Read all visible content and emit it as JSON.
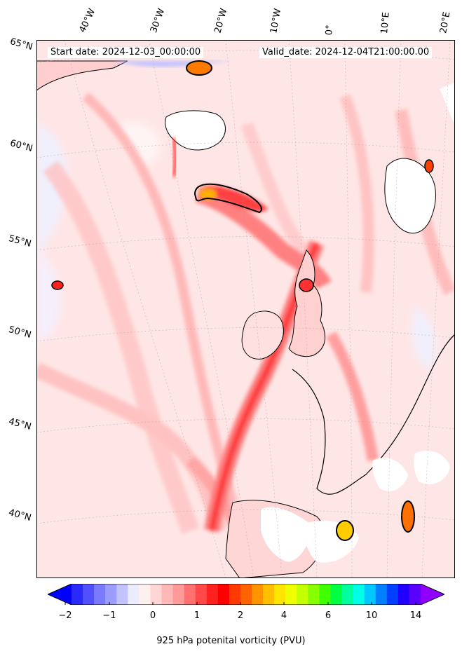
{
  "header": {
    "start_date": "Start date: 2024-12-03_00:00:00",
    "valid_date": "Valid_date: 2024-12-04T21:00:00.00"
  },
  "longitude_labels": [
    "40°W",
    "30°W",
    "20°W",
    "10°W",
    "0°",
    "10°E",
    "20°E"
  ],
  "latitude_labels": [
    "65°N",
    "60°N",
    "55°N",
    "50°N",
    "45°N",
    "40°N"
  ],
  "colorbar": {
    "title": "925 hPa potenital vorticity (PVU)",
    "tick_labels": [
      "−2",
      "−1",
      "0",
      "1",
      "2",
      "4",
      "6",
      "10",
      "14"
    ],
    "colors": [
      "#0000ff",
      "#2a2aff",
      "#5050ff",
      "#7a7aff",
      "#9c9cff",
      "#c2c2ff",
      "#ebebff",
      "#fff0f0",
      "#ffd6d6",
      "#ffb8b8",
      "#ff9a9a",
      "#ff7070",
      "#ff4848",
      "#ff2020",
      "#ff0000",
      "#ff3a00",
      "#ff6400",
      "#ff9400",
      "#ffbe00",
      "#ffe600",
      "#eeff00",
      "#c2ff00",
      "#88ff00",
      "#40ff00",
      "#00ff40",
      "#00ff9c",
      "#00ffe6",
      "#00c8ff",
      "#0080ff",
      "#0040ff",
      "#2000ff",
      "#5a00ff",
      "#9000ff"
    ]
  }
}
